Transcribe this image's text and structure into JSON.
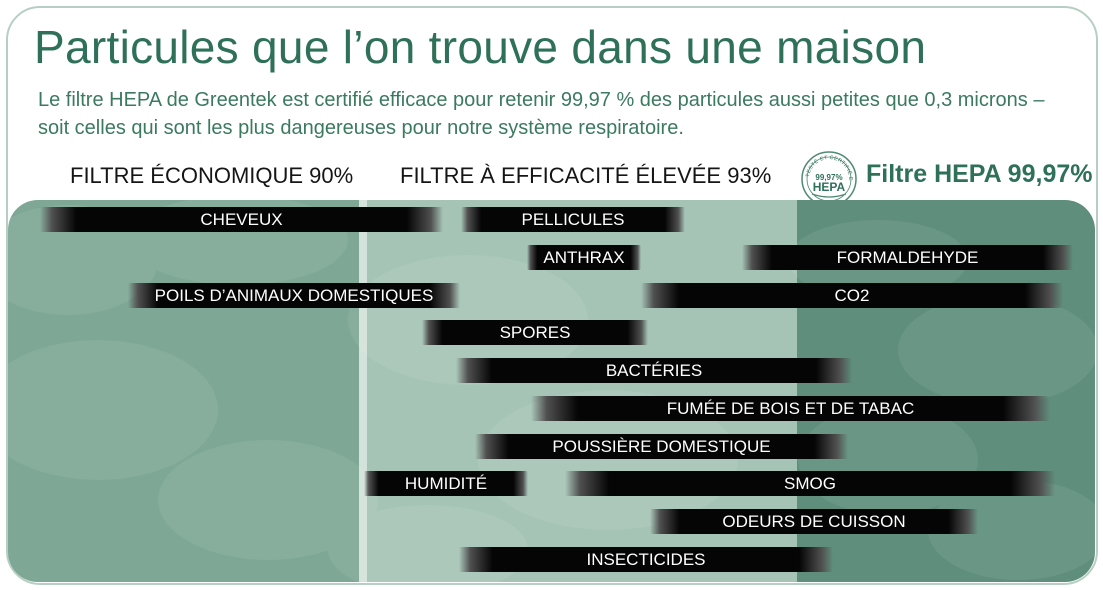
{
  "header": {
    "title": "Particules que l’on trouve dans une maison",
    "subtitle": "Le filtre HEPA de Greentek est certifié efficace pour retenir 99,97 % des particules aussi petites que 0,3 microns – soit celles qui sont les plus dangereuses pour notre système respiratoire."
  },
  "columns": {
    "economique": "FILTRE ÉCONOMIQUE  90%",
    "elevee": "FILTRE À EFFICACITÉ ÉLEVÉE 93%",
    "hepa": "Filtre HEPA 99,97%"
  },
  "seal": {
    "arc_text": "TESTÉ ET CERTIFIÉ EFFICACE",
    "percent": "99,97%",
    "label": "HEPA"
  },
  "colors": {
    "zone_economique": "#7ea795",
    "zone_elevee": "#a5c4b6",
    "zone_hepa": "#5f8e7c",
    "title": "#2f7059",
    "bar": "#050505"
  },
  "particles": [
    {
      "name": "CHEVEUX"
    },
    {
      "name": "PELLICULES"
    },
    {
      "name": "ANTHRAX"
    },
    {
      "name": "FORMALDEHYDE"
    },
    {
      "name": "POILS D’ANIMAUX DOMESTIQUES"
    },
    {
      "name": "CO2"
    },
    {
      "name": "SPORES"
    },
    {
      "name": "BACTÉRIES"
    },
    {
      "name": "FUMÉE DE BOIS ET DE TABAC"
    },
    {
      "name": "POUSSIÈRE DOMESTIQUE"
    },
    {
      "name": "HUMIDITÉ"
    },
    {
      "name": "SMOG"
    },
    {
      "name": "ODEURS DE CUISSON"
    },
    {
      "name": "INSECTICIDES"
    }
  ]
}
